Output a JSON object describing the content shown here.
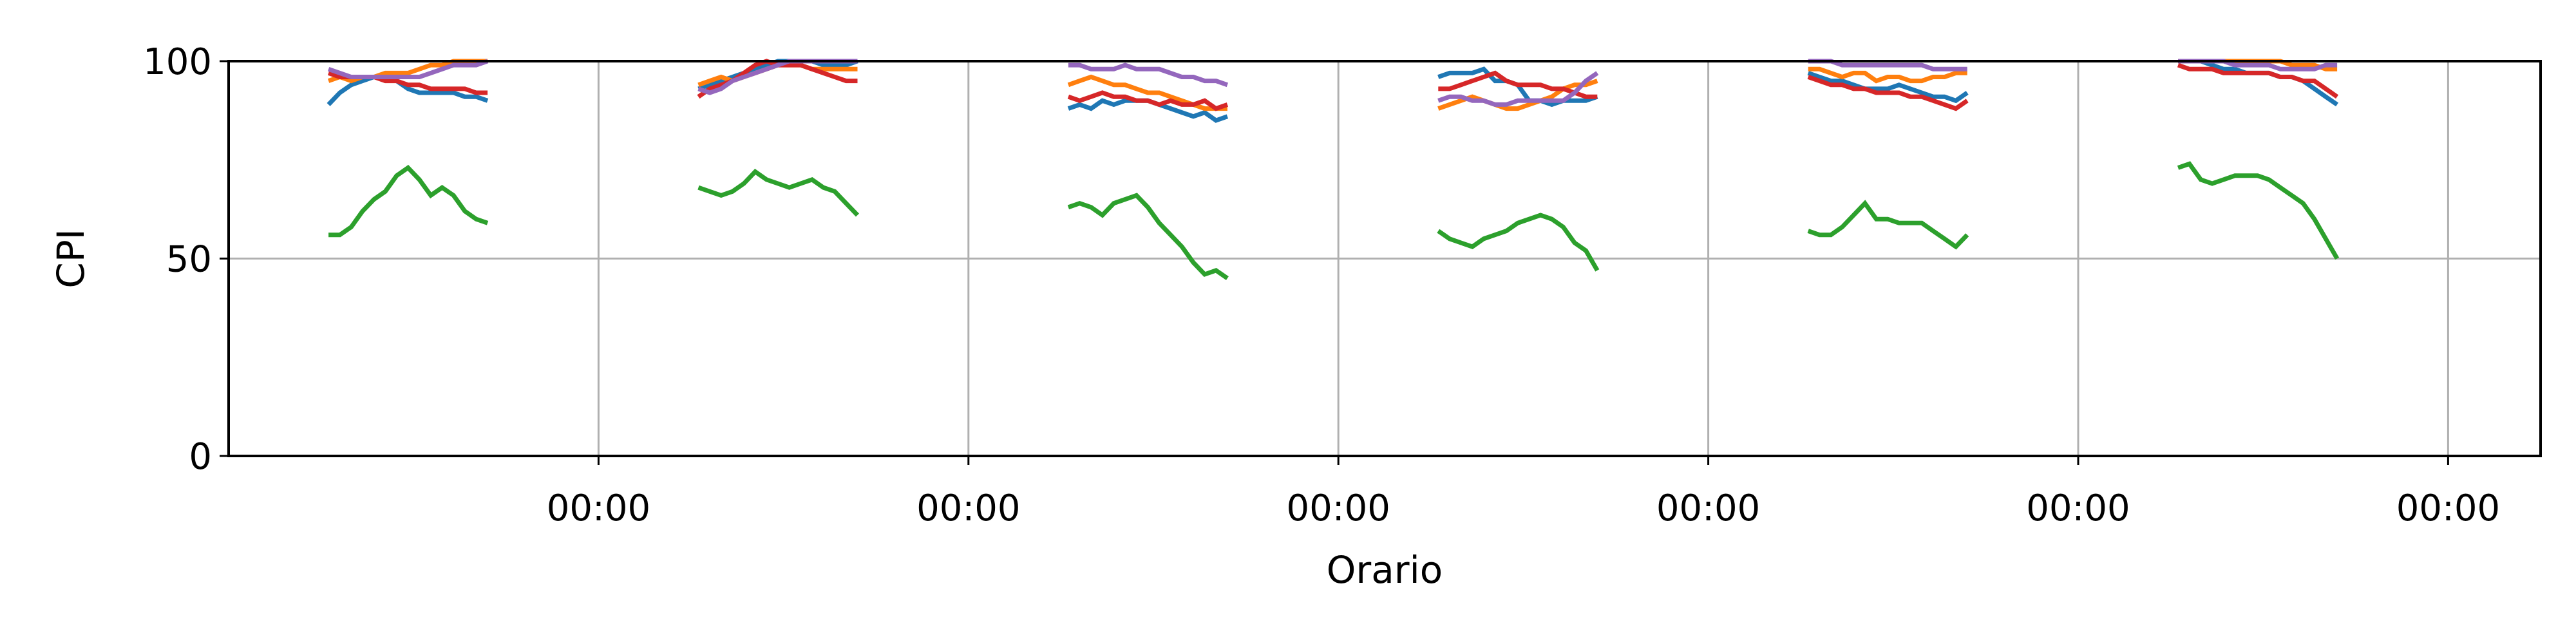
{
  "chart_data": {
    "type": "line",
    "title": "",
    "xlabel": "Orario",
    "ylabel": "CPI",
    "ylim": [
      0,
      100
    ],
    "yticks": [
      0,
      50,
      100
    ],
    "xlim": [
      0,
      6.25
    ],
    "xticks": [
      1,
      2,
      3,
      4,
      5,
      6
    ],
    "xtick_labels": [
      "00:00",
      "00:00",
      "00:00",
      "00:00",
      "00:00",
      "00:00"
    ],
    "grid": true,
    "legend": "none",
    "segments": [
      {
        "start": 0.27,
        "end": 0.7
      },
      {
        "start": 1.27,
        "end": 1.7
      },
      {
        "start": 2.27,
        "end": 2.7
      },
      {
        "start": 3.27,
        "end": 3.7
      },
      {
        "start": 4.27,
        "end": 4.7
      },
      {
        "start": 5.27,
        "end": 5.7
      }
    ],
    "series": [
      {
        "color": "#1f77b4",
        "segments": [
          [
            89,
            92,
            94,
            95,
            96,
            96,
            95,
            93,
            92,
            92,
            92,
            92,
            91,
            91,
            90
          ],
          [
            93,
            94,
            95,
            96,
            97,
            98,
            99,
            100,
            100,
            100,
            100,
            99,
            99,
            99,
            100
          ],
          [
            88,
            89,
            88,
            90,
            89,
            90,
            90,
            90,
            89,
            88,
            87,
            86,
            87,
            85,
            86
          ],
          [
            96,
            97,
            97,
            97,
            98,
            95,
            95,
            94,
            90,
            90,
            89,
            90,
            90,
            90,
            91
          ],
          [
            97,
            96,
            95,
            95,
            94,
            93,
            93,
            93,
            94,
            93,
            92,
            91,
            91,
            90,
            92
          ],
          [
            100,
            100,
            100,
            99,
            98,
            98,
            97,
            97,
            97,
            96,
            96,
            95,
            93,
            91,
            89
          ]
        ]
      },
      {
        "color": "#ff7f0e",
        "segments": [
          [
            95,
            96,
            95,
            96,
            96,
            97,
            97,
            97,
            98,
            99,
            99,
            100,
            100,
            100,
            100
          ],
          [
            94,
            95,
            96,
            95,
            96,
            97,
            98,
            99,
            99,
            99,
            98,
            98,
            98,
            98,
            98
          ],
          [
            94,
            95,
            96,
            95,
            94,
            94,
            93,
            92,
            92,
            91,
            90,
            89,
            88,
            88,
            88
          ],
          [
            88,
            89,
            90,
            91,
            90,
            89,
            88,
            88,
            89,
            90,
            91,
            93,
            94,
            94,
            95
          ],
          [
            98,
            98,
            97,
            96,
            97,
            97,
            95,
            96,
            96,
            95,
            95,
            96,
            96,
            97,
            97
          ],
          [
            100,
            100,
            100,
            100,
            100,
            100,
            100,
            100,
            100,
            100,
            99,
            99,
            99,
            98,
            98
          ]
        ]
      },
      {
        "color": "#2ca02c",
        "segments": [
          [
            56,
            56,
            58,
            62,
            65,
            67,
            71,
            73,
            70,
            66,
            68,
            66,
            62,
            60,
            59
          ],
          [
            68,
            67,
            66,
            67,
            69,
            72,
            70,
            69,
            68,
            69,
            70,
            68,
            67,
            64,
            61
          ],
          [
            63,
            64,
            63,
            61,
            64,
            65,
            66,
            63,
            59,
            56,
            53,
            49,
            46,
            47,
            45
          ],
          [
            57,
            55,
            54,
            53,
            55,
            56,
            57,
            59,
            60,
            61,
            60,
            58,
            54,
            52,
            47
          ],
          [
            57,
            56,
            56,
            58,
            61,
            64,
            60,
            60,
            59,
            59,
            59,
            57,
            55,
            53,
            56
          ],
          [
            73,
            74,
            70,
            69,
            70,
            71,
            71,
            71,
            70,
            68,
            66,
            64,
            60,
            55,
            50
          ]
        ]
      },
      {
        "color": "#d62728",
        "segments": [
          [
            97,
            96,
            96,
            96,
            96,
            95,
            95,
            94,
            94,
            93,
            93,
            93,
            93,
            92,
            92
          ],
          [
            91,
            93,
            94,
            95,
            97,
            99,
            100,
            99,
            99,
            99,
            98,
            97,
            96,
            95,
            95
          ],
          [
            91,
            90,
            91,
            92,
            91,
            91,
            90,
            90,
            89,
            90,
            89,
            89,
            90,
            88,
            89
          ],
          [
            93,
            93,
            94,
            95,
            96,
            97,
            95,
            94,
            94,
            94,
            93,
            93,
            92,
            91,
            91
          ],
          [
            96,
            95,
            94,
            94,
            93,
            93,
            92,
            92,
            92,
            91,
            91,
            90,
            89,
            88,
            90
          ],
          [
            99,
            98,
            98,
            98,
            97,
            97,
            97,
            97,
            97,
            96,
            96,
            95,
            95,
            93,
            91
          ]
        ]
      },
      {
        "color": "#9467bd",
        "segments": [
          [
            98,
            97,
            96,
            96,
            96,
            96,
            96,
            96,
            96,
            97,
            98,
            99,
            99,
            99,
            100
          ],
          [
            93,
            92,
            93,
            95,
            96,
            97,
            98,
            99,
            100,
            100,
            100,
            100,
            100,
            100,
            100
          ],
          [
            99,
            99,
            98,
            98,
            98,
            99,
            98,
            98,
            98,
            97,
            96,
            96,
            95,
            95,
            94
          ],
          [
            90,
            91,
            91,
            90,
            90,
            89,
            89,
            90,
            90,
            90,
            90,
            90,
            92,
            95,
            97
          ],
          [
            100,
            100,
            100,
            99,
            99,
            99,
            99,
            99,
            99,
            99,
            99,
            98,
            98,
            98,
            98
          ],
          [
            100,
            100,
            100,
            100,
            100,
            99,
            99,
            99,
            99,
            98,
            98,
            98,
            98,
            99,
            99
          ]
        ]
      }
    ]
  }
}
